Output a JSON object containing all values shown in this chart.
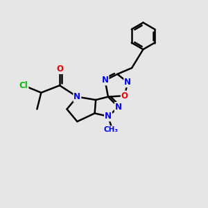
{
  "bg_color": "#e6e6e6",
  "bond_color": "#000000",
  "bond_width": 1.8,
  "atom_colors": {
    "C": "#000000",
    "N": "#0000ee",
    "O": "#ee0000",
    "Cl": "#00bb00"
  },
  "font_size": 8.5,
  "fig_size": [
    3.0,
    3.0
  ],
  "dpi": 100
}
